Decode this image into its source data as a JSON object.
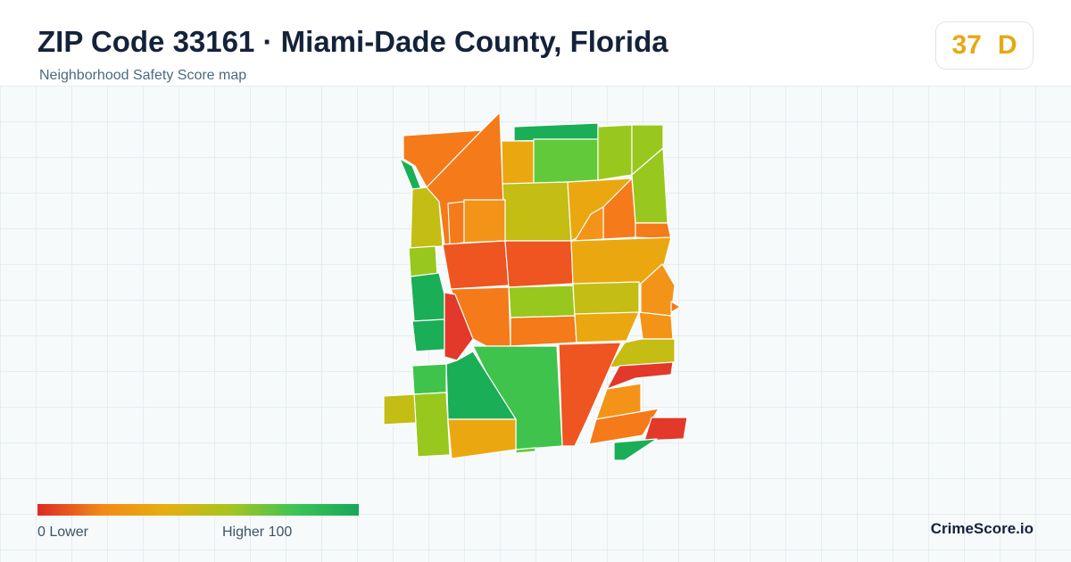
{
  "header": {
    "title": "ZIP Code 33161 · Miami-Dade County, Florida",
    "subtitle": "Neighborhood Safety Score map"
  },
  "score": {
    "value": "37",
    "grade": "D",
    "color": "#e5a913"
  },
  "legend": {
    "min_label": "0  Lower",
    "max_label": "Higher  100",
    "min_value": 0,
    "max_value": 100,
    "colors": [
      "#dc2a26",
      "#f28a17",
      "#e6ae10",
      "#a6c51d",
      "#3ec455",
      "#16a85a"
    ]
  },
  "brand": "CrimeScore.io",
  "palette": {
    "red": "#e2392a",
    "red_orange": "#ee5520",
    "orange": "#f47a1a",
    "orange_amber": "#f39418",
    "amber": "#eba710",
    "olive": "#c3bd14",
    "yellow_green": "#98c81d",
    "light_green": "#62c93a",
    "green": "#3fc34c",
    "deep_green": "#1aae57"
  }
}
